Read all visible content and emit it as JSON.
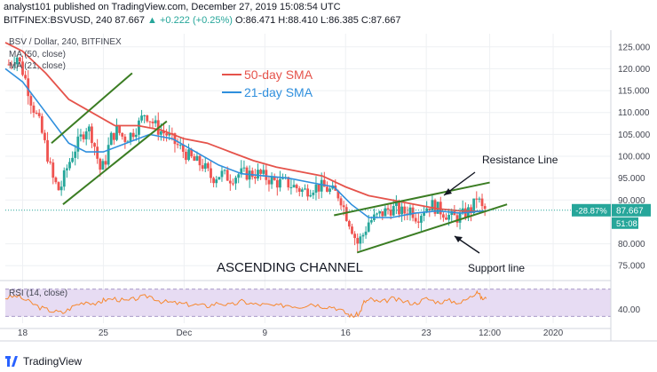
{
  "header": {
    "line1": "analyst101 published on TradingView.com, December 27, 2019 15:08:54 UTC",
    "line2_prefix": "BITFINEX:BSVUSD, 240  87.667",
    "line2_change": "▲ +0.222 (+0.25%)",
    "line2_ohlc": "O:86.471 H:88.410 L:86.385 C:87.667"
  },
  "overlay": {
    "symbol": "BSV / Dollar, 240, BITFINEX",
    "ma50": "MA (50, close)",
    "ma21": "MA (21, close)",
    "rsi": "RSI (14, close)"
  },
  "legend": {
    "sma50": "50-day SMA",
    "sma21": "21-day SMA"
  },
  "annotations": {
    "channel": "ASCENDING CHANNEL",
    "resistance": "Resistance Line",
    "support": "Support line"
  },
  "price_tag": {
    "pct": "-28.87%",
    "price": "87.667",
    "countdown": "51:08"
  },
  "footer": {
    "brand": "TradingView"
  },
  "colors": {
    "sma50": "#e5534b",
    "sma21": "#2f8fdd",
    "up": "#26a69a",
    "down": "#ef5350",
    "trend": "#3b7d23",
    "rsi": "#f7882f",
    "rsi_band": "#e7dcf3"
  },
  "chart_data": {
    "type": "candlestick",
    "y_ticks": [
      125,
      120,
      115,
      110,
      105,
      100,
      95,
      90,
      80,
      75
    ],
    "y_tick_labels": [
      "125.000",
      "120.000",
      "115.000",
      "110.000",
      "105.000",
      "100.000",
      "95.000",
      "90.000",
      "80.000",
      "75.000"
    ],
    "ylim": [
      72,
      128
    ],
    "x_labels": [
      {
        "label": "18",
        "x": 18
      },
      {
        "label": "25",
        "x": 25
      },
      {
        "label": "Dec",
        "x": 32
      },
      {
        "label": "9",
        "x": 39
      },
      {
        "label": "16",
        "x": 46
      },
      {
        "label": "23",
        "x": 53
      },
      {
        "label": "12:00",
        "x": 58.5
      },
      {
        "label": "2020",
        "x": 64
      }
    ],
    "xlim": [
      16.5,
      69
    ],
    "close_path": [
      [
        16.8,
        121
      ],
      [
        17.5,
        123
      ],
      [
        18.2,
        118
      ],
      [
        18.8,
        112
      ],
      [
        19.4,
        108
      ],
      [
        20,
        102
      ],
      [
        20.6,
        95
      ],
      [
        21.2,
        92
      ],
      [
        21.8,
        97
      ],
      [
        22.4,
        101
      ],
      [
        23,
        104
      ],
      [
        23.6,
        107
      ],
      [
        24.1,
        104
      ],
      [
        24.7,
        97
      ],
      [
        25.1,
        98
      ],
      [
        25.6,
        104
      ],
      [
        26.2,
        106
      ],
      [
        26.8,
        104
      ],
      [
        27.4,
        105
      ],
      [
        28,
        107
      ],
      [
        28.6,
        110
      ],
      [
        29.2,
        108
      ],
      [
        29.8,
        106
      ],
      [
        30.5,
        105
      ],
      [
        31.2,
        103
      ],
      [
        32,
        101
      ],
      [
        32.8,
        99
      ],
      [
        33.6,
        98
      ],
      [
        34.4,
        95
      ],
      [
        35.2,
        96
      ],
      [
        36,
        95
      ],
      [
        36.8,
        96
      ],
      [
        37.6,
        96
      ],
      [
        38.4,
        96
      ],
      [
        39.2,
        95
      ],
      [
        40,
        94
      ],
      [
        40.8,
        94
      ],
      [
        41.6,
        93
      ],
      [
        42.4,
        92
      ],
      [
        43.2,
        93
      ],
      [
        44,
        93
      ],
      [
        44.8,
        92
      ],
      [
        45.5,
        91
      ],
      [
        46,
        87
      ],
      [
        46.5,
        84
      ],
      [
        47,
        80
      ],
      [
        47.5,
        82
      ],
      [
        48,
        85
      ],
      [
        48.6,
        86
      ],
      [
        49.2,
        87
      ],
      [
        49.8,
        88
      ],
      [
        50.4,
        88
      ],
      [
        51,
        87
      ],
      [
        51.6,
        88
      ],
      [
        52.2,
        86
      ],
      [
        52.8,
        88
      ],
      [
        53.4,
        89
      ],
      [
        54,
        88
      ],
      [
        54.6,
        87
      ],
      [
        55.2,
        86
      ],
      [
        55.8,
        86
      ],
      [
        56.4,
        87
      ],
      [
        57,
        88
      ],
      [
        57.4,
        91
      ],
      [
        57.8,
        88
      ],
      [
        58.2,
        87.7
      ]
    ],
    "sma50": [
      [
        16.5,
        126
      ],
      [
        18,
        124
      ],
      [
        20,
        119
      ],
      [
        22,
        113
      ],
      [
        24,
        110
      ],
      [
        26,
        107
      ],
      [
        28,
        107
      ],
      [
        30,
        106
      ],
      [
        32,
        104
      ],
      [
        34,
        103
      ],
      [
        36,
        101
      ],
      [
        38,
        99
      ],
      [
        40,
        97.5
      ],
      [
        42,
        96.5
      ],
      [
        44,
        95.5
      ],
      [
        46,
        93
      ],
      [
        48,
        91
      ],
      [
        50,
        90
      ],
      [
        52,
        89
      ],
      [
        54,
        88
      ],
      [
        56,
        87.5
      ],
      [
        58,
        87.4
      ]
    ],
    "sma21": [
      [
        16.5,
        120
      ],
      [
        18,
        117
      ],
      [
        20,
        110
      ],
      [
        22,
        103
      ],
      [
        23.5,
        101
      ],
      [
        25,
        101
      ],
      [
        27,
        103
      ],
      [
        29,
        105
      ],
      [
        31,
        104
      ],
      [
        33,
        101
      ],
      [
        35,
        98
      ],
      [
        37,
        96
      ],
      [
        39,
        95.5
      ],
      [
        41,
        95
      ],
      [
        43,
        94
      ],
      [
        45,
        93
      ],
      [
        46.5,
        89
      ],
      [
        48,
        86
      ],
      [
        50,
        86
      ],
      [
        52,
        87
      ],
      [
        54,
        87.5
      ],
      [
        56,
        87
      ],
      [
        58,
        87.5
      ]
    ],
    "trendlines": [
      {
        "name": "upper-wedge",
        "from": [
          20.5,
          103
        ],
        "to": [
          27.5,
          119
        ]
      },
      {
        "name": "lower-wedge",
        "from": [
          21.5,
          89
        ],
        "to": [
          30.5,
          108
        ]
      },
      {
        "name": "resistance",
        "from": [
          45,
          86.5
        ],
        "to": [
          58.5,
          94
        ]
      },
      {
        "name": "support",
        "from": [
          47,
          78
        ],
        "to": [
          60,
          89
        ]
      }
    ],
    "rsi_band": [
      30,
      70
    ],
    "rsi_ticks": [
      {
        "value": 40,
        "label": "40.00"
      }
    ],
    "rsi_path": [
      [
        16.5,
        57
      ],
      [
        17.5,
        60
      ],
      [
        18.5,
        52
      ],
      [
        19.5,
        43
      ],
      [
        20.5,
        38
      ],
      [
        21.5,
        35
      ],
      [
        22.5,
        46
      ],
      [
        23.5,
        52
      ],
      [
        24.5,
        48
      ],
      [
        25,
        54
      ],
      [
        26,
        56
      ],
      [
        27,
        52
      ],
      [
        28,
        57
      ],
      [
        29,
        60
      ],
      [
        30,
        52
      ],
      [
        31,
        50
      ],
      [
        32,
        48
      ],
      [
        33,
        47
      ],
      [
        34,
        45
      ],
      [
        35,
        50
      ],
      [
        36,
        46
      ],
      [
        37,
        52
      ],
      [
        38,
        48
      ],
      [
        39,
        47
      ],
      [
        40,
        45
      ],
      [
        41,
        47
      ],
      [
        42,
        44
      ],
      [
        43,
        49
      ],
      [
        44,
        45
      ],
      [
        45,
        44
      ],
      [
        46,
        35
      ],
      [
        46.6,
        30
      ],
      [
        47.2,
        34
      ],
      [
        47.6,
        51
      ],
      [
        48.2,
        55
      ],
      [
        49,
        50
      ],
      [
        50,
        56
      ],
      [
        51,
        52
      ],
      [
        52,
        49
      ],
      [
        53,
        56
      ],
      [
        54,
        51
      ],
      [
        55,
        53
      ],
      [
        56,
        50
      ],
      [
        57,
        60
      ],
      [
        57.4,
        68
      ],
      [
        57.8,
        56
      ],
      [
        58.2,
        56
      ]
    ]
  }
}
